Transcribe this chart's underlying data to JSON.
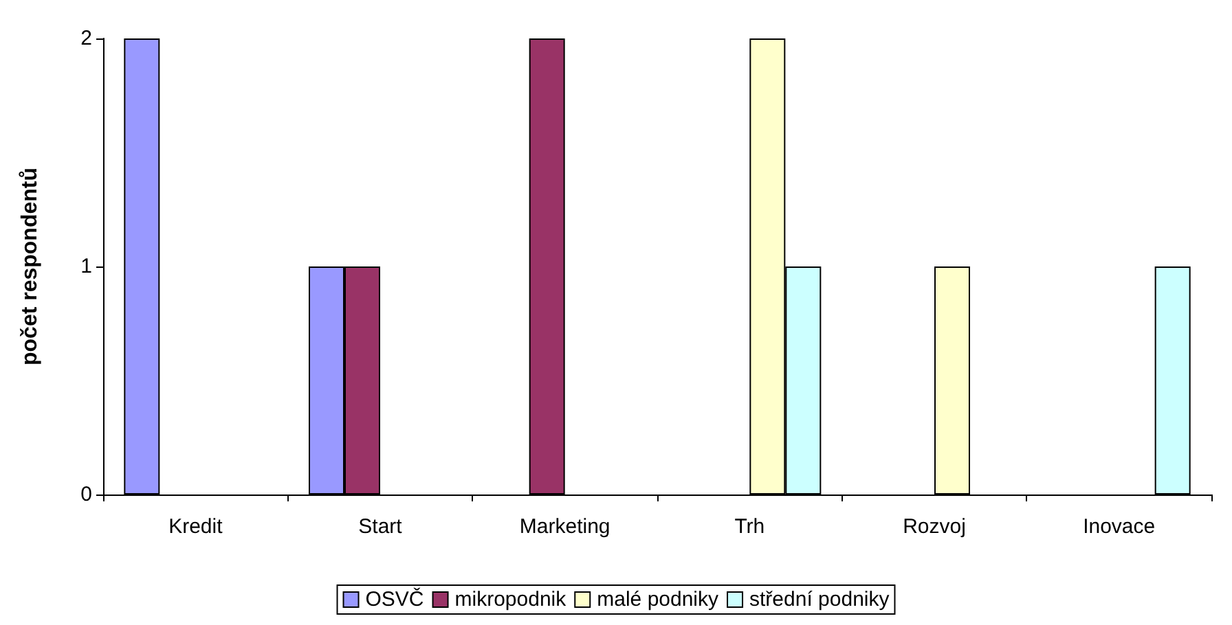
{
  "chart_data": {
    "type": "bar",
    "ylabel": "počet respondentů",
    "categories": [
      "Kredit",
      "Start",
      "Marketing",
      "Trh",
      "Rozvoj",
      "Inovace"
    ],
    "series": [
      {
        "name": "OSVČ",
        "color": "#9999ff",
        "values": [
          2,
          1,
          null,
          null,
          null,
          null
        ]
      },
      {
        "name": "mikropodnik",
        "color": "#993366",
        "values": [
          null,
          1,
          2,
          null,
          null,
          null
        ]
      },
      {
        "name": "malé podniky",
        "color": "#ffffcc",
        "values": [
          null,
          null,
          null,
          2,
          1,
          null
        ]
      },
      {
        "name": "střední podniky",
        "color": "#ccffff",
        "values": [
          null,
          null,
          null,
          1,
          null,
          1
        ]
      }
    ],
    "ylim": [
      0,
      2
    ],
    "yticks": [
      0,
      1,
      2
    ],
    "grid": false,
    "legend": "bottom"
  }
}
